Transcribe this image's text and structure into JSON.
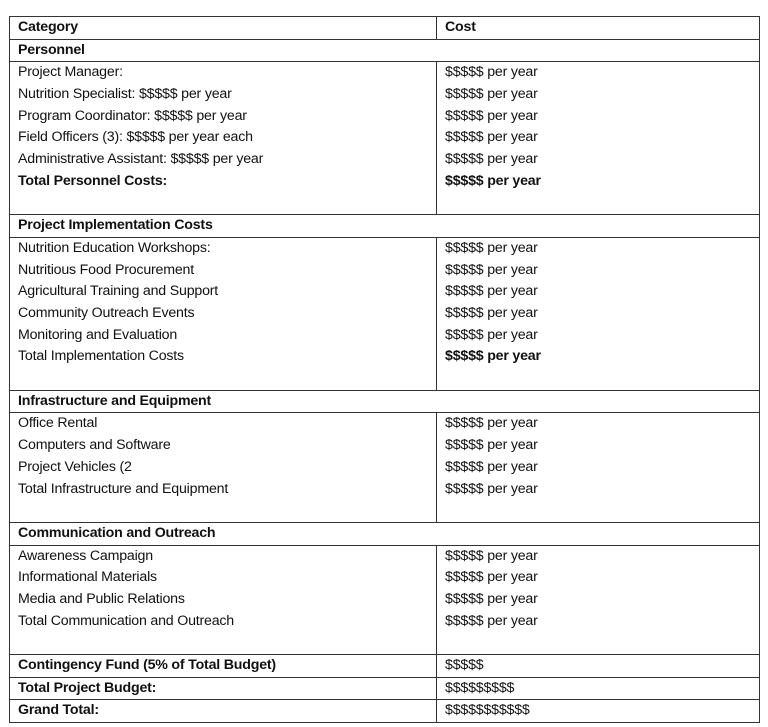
{
  "header": {
    "category": "Category",
    "cost": "Cost"
  },
  "sections": [
    {
      "title": "Personnel",
      "items": [
        {
          "label": "Project Manager:",
          "cost": "$$$$$ per year",
          "bold": false
        },
        {
          "label": "Nutrition Specialist: $$$$$ per year",
          "cost": "$$$$$ per year",
          "bold": false
        },
        {
          "label": "Program Coordinator: $$$$$ per year",
          "cost": "$$$$$ per year",
          "bold": false
        },
        {
          "label": "Field Officers (3): $$$$$ per year each",
          "cost": "$$$$$ per year",
          "bold": false
        },
        {
          "label": "Administrative Assistant: $$$$$ per year",
          "cost": "$$$$$ per year",
          "bold": false
        },
        {
          "label": "Total Personnel Costs:",
          "cost": "$$$$$ per year",
          "bold": true
        }
      ]
    },
    {
      "title": "Project Implementation Costs",
      "items": [
        {
          "label": "Nutrition Education Workshops:",
          "cost": "$$$$$ per year",
          "bold": false
        },
        {
          "label": "Nutritious Food Procurement",
          "cost": "$$$$$ per year",
          "bold": false
        },
        {
          "label": "Agricultural Training and Support",
          "cost": "$$$$$ per year",
          "bold": false
        },
        {
          "label": "Community Outreach Events",
          "cost": "$$$$$ per year",
          "bold": false
        },
        {
          "label": "Monitoring and Evaluation",
          "cost": "$$$$$ per year",
          "bold": false
        },
        {
          "label": "Total Implementation Costs",
          "cost": "$$$$$ per year",
          "bold": false,
          "cost_bold": true
        }
      ]
    },
    {
      "title": "Infrastructure and Equipment",
      "items": [
        {
          "label": "Office Rental",
          "cost": "$$$$$ per year",
          "bold": false
        },
        {
          "label": "Computers and Software",
          "cost": "$$$$$ per year",
          "bold": false
        },
        {
          "label": "Project Vehicles (2",
          "cost": "$$$$$ per year",
          "bold": false
        },
        {
          "label": "Total Infrastructure and Equipment",
          "cost": "$$$$$ per year",
          "bold": false
        }
      ]
    },
    {
      "title": "Communication and Outreach",
      "items": [
        {
          "label": "Awareness Campaign",
          "cost": "$$$$$ per year",
          "bold": false
        },
        {
          "label": "Informational Materials",
          "cost": "$$$$$ per year",
          "bold": false
        },
        {
          "label": "Media and Public Relations",
          "cost": "$$$$$ per year",
          "bold": false
        },
        {
          "label": "Total Communication and Outreach",
          "cost": "$$$$$ per year",
          "bold": false
        }
      ]
    }
  ],
  "totals": [
    {
      "label": "Contingency Fund (5% of Total Budget)",
      "cost": "$$$$$"
    },
    {
      "label": "Total Project Budget:",
      "cost": "$$$$$$$$$"
    },
    {
      "label": "Grand Total:",
      "cost": "$$$$$$$$$$$"
    }
  ]
}
